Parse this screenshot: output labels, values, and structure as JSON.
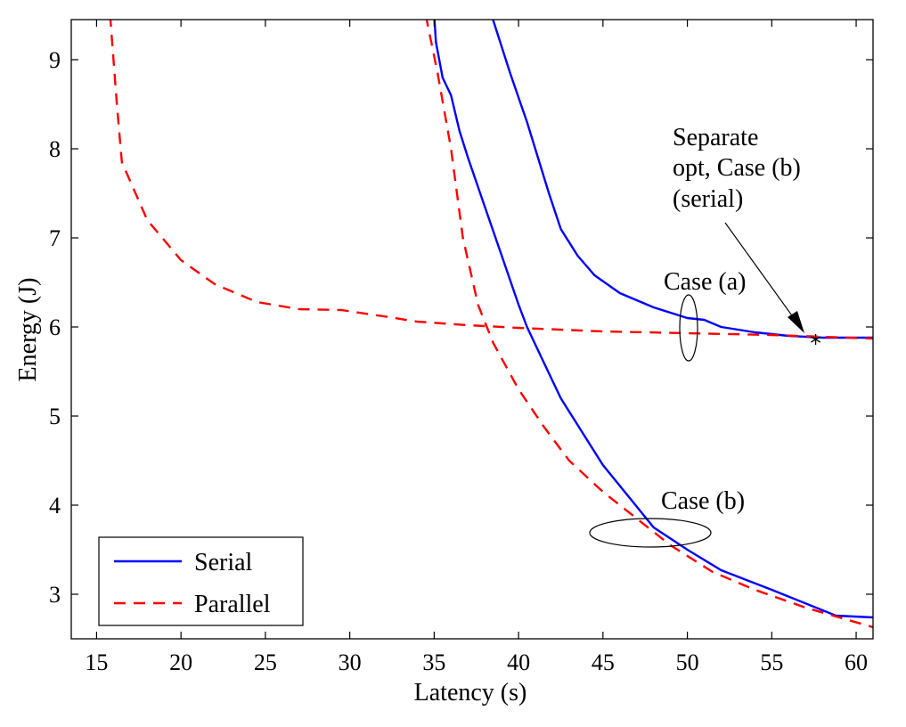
{
  "chart_data": {
    "type": "line",
    "title": "",
    "xlabel": "Latency (s)",
    "ylabel": "Energy (J)",
    "xlim": [
      13.5,
      61
    ],
    "ylim": [
      2.5,
      9.45
    ],
    "xticks": [
      15,
      20,
      25,
      30,
      35,
      40,
      45,
      50,
      55,
      60
    ],
    "yticks": [
      3,
      4,
      5,
      6,
      7,
      8,
      9
    ],
    "grid": false,
    "legend_position": "bottom-left",
    "series": [
      {
        "name": "Serial",
        "label": "Serial",
        "color": "#0000ff",
        "style": "solid",
        "values": [
          [
            35.0,
            9.5
          ],
          [
            35.1,
            9.2
          ],
          [
            35.5,
            8.8
          ],
          [
            36.0,
            8.6
          ],
          [
            36.5,
            8.2
          ],
          [
            37.0,
            7.9
          ],
          [
            38.0,
            7.35
          ],
          [
            39.0,
            6.8
          ],
          [
            40.0,
            6.25
          ],
          [
            40.5,
            6.0
          ],
          [
            41.5,
            5.6
          ],
          [
            42.5,
            5.2
          ],
          [
            43.5,
            4.9
          ],
          [
            45.0,
            4.45
          ],
          [
            46.5,
            4.1
          ],
          [
            48.0,
            3.75
          ],
          [
            50.0,
            3.5
          ],
          [
            52.0,
            3.27
          ],
          [
            55.0,
            3.05
          ],
          [
            58.8,
            2.76
          ],
          [
            61.0,
            2.74
          ]
        ]
      },
      {
        "name": "Serial-upper",
        "label": "",
        "color": "#0000ff",
        "style": "solid",
        "values": [
          [
            38.4,
            9.5
          ],
          [
            39.5,
            8.85
          ],
          [
            40.5,
            8.3
          ],
          [
            41.8,
            7.5
          ],
          [
            42.5,
            7.1
          ],
          [
            43.5,
            6.8
          ],
          [
            44.5,
            6.58
          ],
          [
            46.0,
            6.38
          ],
          [
            48.0,
            6.22
          ],
          [
            50.0,
            6.1
          ],
          [
            51.0,
            6.08
          ],
          [
            52.0,
            6.0
          ],
          [
            54.0,
            5.94
          ],
          [
            56.0,
            5.9
          ],
          [
            58.0,
            5.88
          ],
          [
            61.0,
            5.88
          ]
        ]
      },
      {
        "name": "Parallel",
        "label": "Parallel",
        "color": "#ff0000",
        "style": "dashed",
        "values": [
          [
            15.8,
            9.5
          ],
          [
            16.2,
            8.5
          ],
          [
            16.5,
            7.85
          ],
          [
            18.0,
            7.2
          ],
          [
            20.0,
            6.75
          ],
          [
            22.0,
            6.48
          ],
          [
            24.5,
            6.28
          ],
          [
            27.0,
            6.2
          ],
          [
            29.5,
            6.19
          ],
          [
            32.0,
            6.12
          ],
          [
            34.0,
            6.06
          ],
          [
            37.0,
            6.02
          ],
          [
            40.0,
            5.99
          ],
          [
            45.0,
            5.95
          ],
          [
            50.0,
            5.93
          ],
          [
            55.0,
            5.91
          ],
          [
            61.0,
            5.87
          ]
        ]
      },
      {
        "name": "Parallel-lower",
        "label": "",
        "color": "#ff0000",
        "style": "dashed",
        "values": [
          [
            34.5,
            9.5
          ],
          [
            35.2,
            8.85
          ],
          [
            36.0,
            8.0
          ],
          [
            36.7,
            7.0
          ],
          [
            37.6,
            6.25
          ],
          [
            38.5,
            5.82
          ],
          [
            40.0,
            5.3
          ],
          [
            41.5,
            4.88
          ],
          [
            43.0,
            4.5
          ],
          [
            45.0,
            4.15
          ],
          [
            47.0,
            3.85
          ],
          [
            49.0,
            3.55
          ],
          [
            51.5,
            3.25
          ],
          [
            54.0,
            3.05
          ],
          [
            57.0,
            2.85
          ],
          [
            61.0,
            2.63
          ]
        ]
      }
    ],
    "markers": [
      {
        "name": "separate-opt-point",
        "x": 57.6,
        "y": 5.86,
        "symbol": "*"
      }
    ],
    "annotations": {
      "separate_opt": [
        "Separate",
        "opt, Case (b)",
        "(serial)"
      ],
      "case_a": "Case (a)",
      "case_b": "Case (b)"
    }
  }
}
